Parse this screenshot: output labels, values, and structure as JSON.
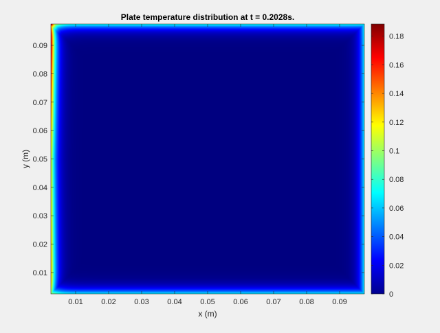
{
  "chart_data": {
    "type": "heatmap",
    "title": "Plate temperature distribution at t = 0.2028s.",
    "xlabel": "x (m)",
    "ylabel": "y (m)",
    "xlim": [
      0.0025,
      0.0975
    ],
    "ylim": [
      0.0025,
      0.0975
    ],
    "x_ticks": [
      0.01,
      0.02,
      0.03,
      0.04,
      0.05,
      0.06,
      0.07,
      0.08,
      0.09
    ],
    "y_ticks": [
      0.01,
      0.02,
      0.03,
      0.04,
      0.05,
      0.06,
      0.07,
      0.08,
      0.09
    ],
    "colorbar": {
      "colormap": "jet",
      "clim": [
        0,
        0.1885
      ],
      "ticks": [
        0,
        0.02,
        0.04,
        0.06,
        0.08,
        0.1,
        0.12,
        0.14,
        0.16,
        0.18
      ]
    },
    "boundary_profile": {
      "interior_value": 0.0,
      "left_edge_value_bottom": 0.13,
      "left_edge_value_middle": 0.11,
      "left_edge_value_top": 0.18,
      "top_edge_value": 0.07,
      "right_edge_value": 0.065,
      "bottom_edge_value": 0.065,
      "top_left_corner_value": 0.185
    }
  }
}
